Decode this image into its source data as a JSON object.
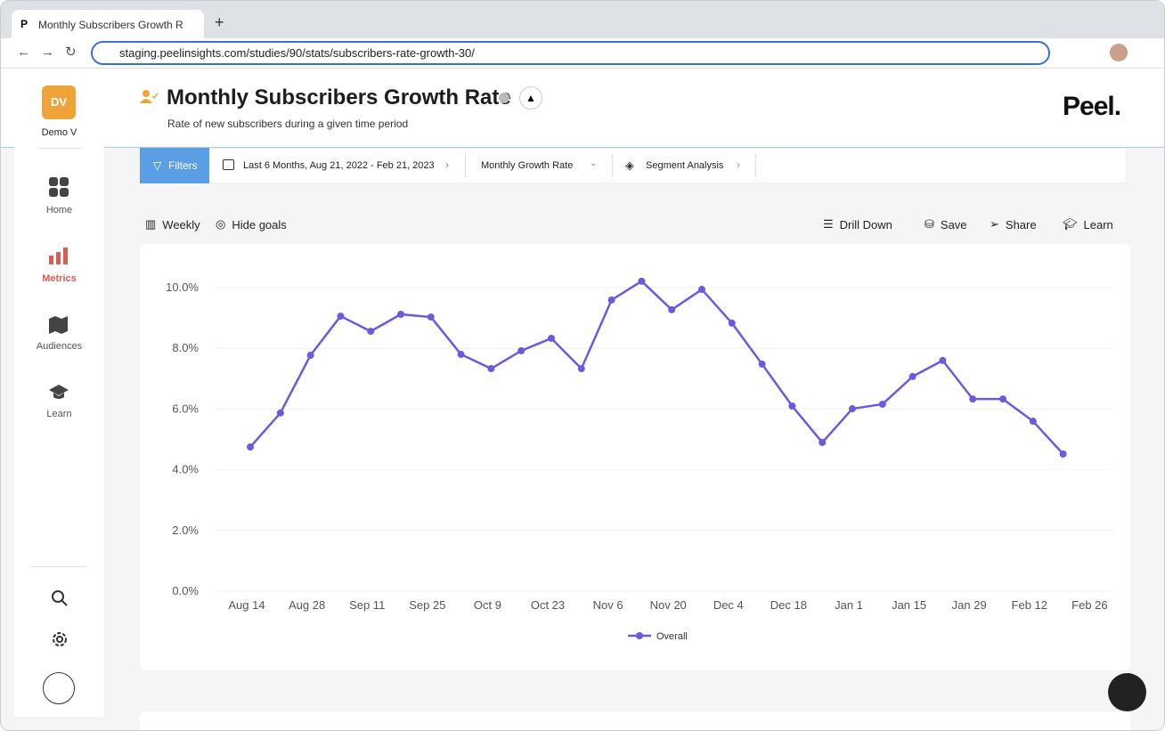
{
  "browser": {
    "tab_title": "Monthly Subscribers Growth R",
    "url": "staging.peelinsights.com/studies/90/stats/subscribers-rate-growth-30/"
  },
  "sidebar": {
    "avatar": "DV",
    "user": "Demo V",
    "nav": [
      "Home",
      "Metrics",
      "Audiences",
      "Learn"
    ]
  },
  "header": {
    "title": "Monthly Subscribers Growth Rate",
    "subtitle": "Rate of new subscribers during a given time period",
    "logo": "Peel."
  },
  "filters": {
    "button": "Filters",
    "date_range": "Last 6 Months, Aug 21, 2022 - Feb 21, 2023",
    "metric": "Monthly Growth Rate",
    "segment": "Segment Analysis"
  },
  "toolbar": {
    "left": [
      "Weekly",
      "Hide goals"
    ],
    "right": [
      "Drill Down",
      "Save",
      "Share",
      "Learn"
    ]
  },
  "chart_data": {
    "type": "line",
    "categories": [
      "Aug 14",
      null,
      "Aug 28",
      null,
      "Sep 11",
      null,
      "Sep 25",
      null,
      "Oct 9",
      null,
      "Oct 23",
      null,
      "Nov 6",
      null,
      "Nov 20",
      null,
      "Dec 4",
      null,
      "Dec 18",
      null,
      "Jan 1",
      null,
      "Jan 15",
      null,
      "Jan 29",
      null,
      "Feb 12",
      null,
      "Feb 26"
    ],
    "series": [
      {
        "name": "Overall",
        "color": "#7057e0",
        "values": [
          4.75,
          5.87,
          7.77,
          9.06,
          8.56,
          9.12,
          9.03,
          7.8,
          7.33,
          7.92,
          8.33,
          7.33,
          9.59,
          10.21,
          9.27,
          9.94,
          8.83,
          7.48,
          6.1,
          4.9,
          6.01,
          6.16,
          7.07,
          7.6,
          6.33,
          6.33,
          5.6,
          4.52,
          null
        ]
      }
    ],
    "ylim": [
      0,
      10.5
    ],
    "yticks": [
      {
        "value": 0,
        "label": "0.0%"
      },
      {
        "value": 2,
        "label": "2.0%"
      },
      {
        "value": 4,
        "label": "4.0%"
      },
      {
        "value": 6,
        "label": "6.0%"
      },
      {
        "value": 8,
        "label": "8.0%"
      },
      {
        "value": 10,
        "label": "10.0%"
      }
    ],
    "grid": true,
    "legend": "bottom"
  }
}
